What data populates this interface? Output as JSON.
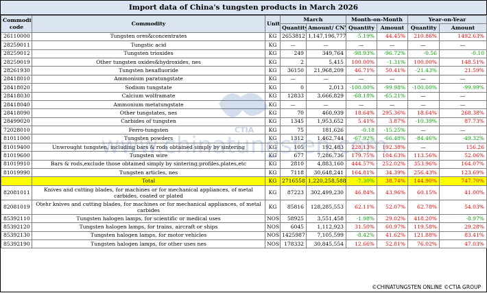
{
  "title": "Import data of China's tungsten products in March 2026",
  "headers": {
    "code": "Commodity code",
    "commodity": "Commodity",
    "unit": "Unit",
    "march": "March",
    "mom": "Month-on-Month",
    "yoy": "Year-on-Year",
    "quantity": "Quantity",
    "amount_cny": "Amount/ CNY",
    "amount": "Amount"
  },
  "rows": [
    {
      "code": "26110000",
      "name": "Tungsten ores&concentrates",
      "unit": "KG",
      "qty": "2653812",
      "amt": "1,147,196,777",
      "mom_q": "-5.19%",
      "mom_a": "44.45%",
      "yoy_q": "210.86%",
      "yoy_a": "1492.63%"
    },
    {
      "code": "28259011",
      "name": "Tungstic acid",
      "unit": "KG",
      "qty": "—",
      "amt": "—",
      "mom_q": "—",
      "mom_a": "—",
      "yoy_q": "—",
      "yoy_a": "—"
    },
    {
      "code": "28259012",
      "name": "Tungsten trioxides",
      "unit": "KG",
      "qty": "249",
      "amt": "349,764",
      "mom_q": "-98.93%",
      "mom_a": "-96.72%",
      "yoy_q": "-0.56",
      "yoy_a": "-0.10"
    },
    {
      "code": "28259019",
      "name": "Other tungsten oxides&hydroxides, nes",
      "unit": "KG",
      "qty": "2",
      "amt": "5,415",
      "mom_q": "100.00%",
      "mom_a": "-1.31%",
      "yoy_q": "100.00%",
      "yoy_a": "148.51%"
    },
    {
      "code": "28261930",
      "name": "Tungsten hexafluoride",
      "unit": "KG",
      "qty": "36150",
      "amt": "21,968,209",
      "mom_q": "46.71%",
      "mom_a": "50.41%",
      "yoy_q": "-21.43%",
      "yoy_a": "21.59%"
    },
    {
      "code": "28418010",
      "name": "Ammonium paratungstate",
      "unit": "KG",
      "qty": "—",
      "amt": "—",
      "mom_q": "—",
      "mom_a": "—",
      "yoy_q": "—",
      "yoy_a": "—"
    },
    {
      "code": "28418020",
      "name": "Sodium tungstate",
      "unit": "KG",
      "qty": "0",
      "amt": "2,013",
      "mom_q": "-100.00%",
      "mom_a": "-99.98%",
      "yoy_q": "-100.00%",
      "yoy_a": "-99.99%"
    },
    {
      "code": "28418030",
      "name": "Calcium wolframate",
      "unit": "KG",
      "qty": "12833",
      "amt": "3,666,829",
      "mom_q": "-68.18%",
      "mom_a": "-65.21%",
      "yoy_q": "—",
      "yoy_a": "—"
    },
    {
      "code": "28418040",
      "name": "Ammonium metatungstate",
      "unit": "KG",
      "qty": "—",
      "amt": "—",
      "mom_q": "—",
      "mom_a": "—",
      "yoy_q": "—",
      "yoy_a": "—"
    },
    {
      "code": "28418090",
      "name": "Other tungstates, nes",
      "unit": "KG",
      "qty": "70",
      "amt": "460,939",
      "mom_q": "18.64%",
      "mom_a": "295.36%",
      "yoy_q": "18.64%",
      "yoy_a": "268.38%"
    },
    {
      "code": "28499020",
      "name": "Carbides of tungsten",
      "unit": "KG",
      "qty": "1345",
      "amt": "1,953,652",
      "mom_q": "5.41%",
      "mom_a": "3.87%",
      "yoy_q": "-10.39%",
      "yoy_a": "87.73%"
    },
    {
      "code": "72028010",
      "name": "Ferro-tungsten",
      "unit": "KG",
      "qty": "75",
      "amt": "181,626",
      "mom_q": "-0.18",
      "mom_a": "-15.25%",
      "yoy_q": "—",
      "yoy_a": "—"
    },
    {
      "code": "81011000",
      "name": "Tungsten powders",
      "unit": "KG",
      "qty": "1312",
      "amt": "1,462,744",
      "mom_q": "-67.92%",
      "mom_a": "-66.48%",
      "yoy_q": "-84.46%",
      "yoy_a": "-49.32%"
    },
    {
      "code": "81019400",
      "name": "Unwrought tungsten, including bars & rods obtained simply by sintering",
      "unit": "KG",
      "qty": "105",
      "amt": "192,483",
      "mom_q": "228.13%",
      "mom_a": "192.38%",
      "yoy_q": "—",
      "yoy_a": "156.26"
    },
    {
      "code": "81019600",
      "name": "Tungsten wire",
      "unit": "KG",
      "qty": "677",
      "amt": "7,286,736",
      "mom_q": "179.75%",
      "mom_a": "104.63%",
      "yoy_q": "113.56%",
      "yoy_a": "52.06%"
    },
    {
      "code": "81019910",
      "name": "Bars & rods,exclude those obtained simply by sintering;profiles,plates,etc",
      "unit": "KG",
      "qty": "2810",
      "amt": "4,883,160",
      "mom_q": "444.57%",
      "mom_a": "252.02%",
      "yoy_q": "353.96%",
      "yoy_a": "164.07%"
    },
    {
      "code": "81019990",
      "name": "Tungsten articles, nes",
      "unit": "KG",
      "qty": "7118",
      "amt": "30,648,241",
      "mom_q": "164.81%",
      "mom_a": "34.39%",
      "yoy_q": "256.43%",
      "yoy_a": "123.69%"
    },
    {
      "code": "",
      "name": "Total",
      "unit": "KG",
      "qty": "2716558",
      "amt": "1,220,258,588",
      "mom_q": "-7.30%",
      "mom_a": "38.74%",
      "yoy_q": "144.90%",
      "yoy_a": "747.70%",
      "total": true
    },
    {
      "code": "82081011",
      "name": "Knives and cutting blades, for machines or for mechanical appliances, of metal carbides, coated or plated",
      "unit": "KG",
      "qty": "87223",
      "amt": "302,499,230",
      "mom_q": "46.84%",
      "mom_a": "43.96%",
      "yoy_q": "60.15%",
      "yoy_a": "41.00%",
      "tall": true
    },
    {
      "code": "82081019",
      "name": "Otehr knives and cutting blades, for machines or for mechanical appliances, of metal carbides",
      "unit": "KG",
      "qty": "85816",
      "amt": "128,285,553",
      "mom_q": "62.11%",
      "mom_a": "52.07%",
      "yoy_q": "62.78%",
      "yoy_a": "54.03%",
      "tall": true
    },
    {
      "code": "85392110",
      "name": "Tungsten halogen lamps, for scientific or medical uses",
      "unit": "NOS",
      "qty": "58925",
      "amt": "3,551,458",
      "mom_q": "-1.98%",
      "mom_a": "29.02%",
      "yoy_q": "418.20%",
      "yoy_a": "-8.97%"
    },
    {
      "code": "85392120",
      "name": "Tungsten halogen lamps, for trains, aircraft or ships",
      "unit": "NOS",
      "qty": "6045",
      "amt": "1,112,923",
      "mom_q": "31.50%",
      "mom_a": "60.97%",
      "yoy_q": "119.58%",
      "yoy_a": "29.28%"
    },
    {
      "code": "85392130",
      "name": "Tungsten halogen lamps, for motor vehicles",
      "unit": "NOS",
      "qty": "1425987",
      "amt": "7,105,599",
      "mom_q": "-8.42%",
      "mom_a": "41.62%",
      "yoy_q": "121.88%",
      "yoy_a": "83.41%"
    },
    {
      "code": "85392190",
      "name": "Tungsten halogen lamps, for other uses nes",
      "unit": "NOS",
      "qty": "178332",
      "amt": "30,845,554",
      "mom_q": "12.66%",
      "mom_a": "52.81%",
      "yoy_q": "76.02%",
      "yoy_a": "47.03%"
    }
  ],
  "watermark": {
    "brand": "CTIA",
    "site": "www.chinatungsten.com"
  },
  "footer": "©CHINATUNGSTEN ONLINE  ©CTIA GROUP",
  "colors": {
    "header_bg": "#dbe5f1",
    "increase": "#e00000",
    "decrease": "#00a000",
    "total_bg": "#ffff00"
  }
}
